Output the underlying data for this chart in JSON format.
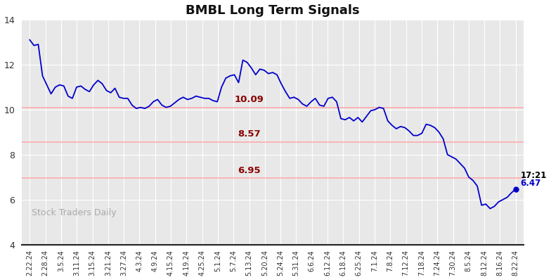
{
  "title": "BMBL Long Term Signals",
  "background_color": "#ffffff",
  "plot_bg_color": "#e8e8e8",
  "line_color": "#0000cc",
  "hline_color": "#ffaaaa",
  "hlines": [
    10.09,
    8.57,
    6.95
  ],
  "hline_labels": [
    "10.09",
    "8.57",
    "6.95"
  ],
  "hline_label_color": "#8b0000",
  "ylim": [
    4,
    14
  ],
  "watermark": "Stock Traders Daily",
  "annotation_time": "17:21",
  "annotation_value": "6.47",
  "annotation_color_time": "#000000",
  "annotation_color_value": "#0000cc",
  "x_labels": [
    "2.22.24",
    "2.28.24",
    "3.5.24",
    "3.11.24",
    "3.15.24",
    "3.21.24",
    "3.27.24",
    "4.3.24",
    "4.9.24",
    "4.15.24",
    "4.19.24",
    "4.25.24",
    "5.1.24",
    "5.7.24",
    "5.13.24",
    "5.20.24",
    "5.24.24",
    "5.31.24",
    "6.6.24",
    "6.12.24",
    "6.18.24",
    "6.25.24",
    "7.1.24",
    "7.8.24",
    "7.12.24",
    "7.18.24",
    "7.24.24",
    "7.30.24",
    "8.5.24",
    "8.12.24",
    "8.16.24",
    "8.22.24"
  ],
  "price_data": [
    13.1,
    12.85,
    12.9,
    11.5,
    11.1,
    10.7,
    11.0,
    11.1,
    11.05,
    10.6,
    10.5,
    11.0,
    11.05,
    10.9,
    10.8,
    11.1,
    11.3,
    11.15,
    10.85,
    10.75,
    10.95,
    10.55,
    10.5,
    10.5,
    10.2,
    10.05,
    10.1,
    10.05,
    10.15,
    10.35,
    10.45,
    10.2,
    10.1,
    10.15,
    10.3,
    10.45,
    10.55,
    10.45,
    10.5,
    10.6,
    10.55,
    10.5,
    10.5,
    10.4,
    10.35,
    11.0,
    11.4,
    11.5,
    11.55,
    11.2,
    12.2,
    12.1,
    11.85,
    11.55,
    11.8,
    11.75,
    11.6,
    11.65,
    11.55,
    11.15,
    10.8,
    10.5,
    10.55,
    10.45,
    10.25,
    10.15,
    10.35,
    10.5,
    10.2,
    10.15,
    10.5,
    10.55,
    10.35,
    9.6,
    9.55,
    9.65,
    9.5,
    9.65,
    9.45,
    9.7,
    9.95,
    10.0,
    10.1,
    10.05,
    9.5,
    9.3,
    9.15,
    9.25,
    9.2,
    9.05,
    8.85,
    8.85,
    8.95,
    9.35,
    9.3,
    9.2,
    9.0,
    8.7,
    8.0,
    7.9,
    7.8,
    7.6,
    7.4,
    7.0,
    6.85,
    6.6,
    5.75,
    5.8,
    5.6,
    5.7,
    5.9,
    6.0,
    6.1,
    6.3,
    6.47
  ]
}
